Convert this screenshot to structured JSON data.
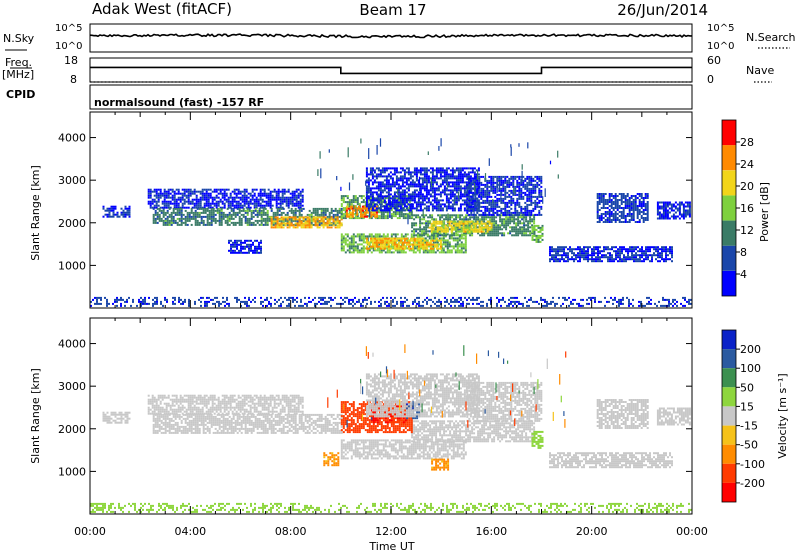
{
  "header": {
    "title_left": "Adak West (fitACF)",
    "title_center": "Beam 17",
    "title_right": "26/Jun/2014"
  },
  "chart_data": [
    {
      "type": "line",
      "panel": "noise",
      "left_label": "N.Sky",
      "right_label": "N.Search",
      "left_ticks": [
        "10^5",
        "10^0"
      ],
      "right_ticks": [
        "10^5",
        "10^0"
      ],
      "series": [
        {
          "name": "N.Sky",
          "style": "solid",
          "x": [
            0,
            6,
            12,
            18,
            24
          ],
          "y_fraction": [
            0.42,
            0.4,
            0.45,
            0.4,
            0.42
          ]
        }
      ]
    },
    {
      "type": "line",
      "panel": "frequency",
      "left_label": "Freq.",
      "left_unit": "[MHz]",
      "left_ticks": [
        18,
        8
      ],
      "ylim_left": [
        8,
        18
      ],
      "right_label": "Nave",
      "right_ticks": [
        60,
        0
      ],
      "ylim_right": [
        0,
        60
      ],
      "series": [
        {
          "name": "Freq.",
          "style": "solid",
          "x": [
            0,
            10,
            10,
            18,
            18,
            24
          ],
          "y": [
            14.1,
            14.1,
            11.6,
            11.6,
            14.1,
            14.1
          ]
        },
        {
          "name": "Nave",
          "style": "dotted",
          "x": [
            0,
            24
          ],
          "y": [
            8,
            8
          ]
        }
      ]
    },
    {
      "type": "text",
      "panel": "cpid",
      "left_label": "CPID",
      "program": "normalsound (fast) -157 RF"
    },
    {
      "type": "heatmap",
      "panel": "power",
      "ylabel": "Slant Range [km]",
      "yticks": [
        1000,
        2000,
        3000,
        4000
      ],
      "ylim": [
        0,
        4600
      ],
      "colorbar_label": "Power [dB]",
      "colorbar_ticks": [
        4,
        8,
        12,
        16,
        20,
        24,
        28
      ],
      "colorbar_range": [
        0,
        32
      ],
      "colors": [
        "#0000ff",
        "#1a46aa",
        "#3a7b66",
        "#7ed03e",
        "#f2d51a",
        "#ff8a00",
        "#ff0000"
      ],
      "regions": [
        {
          "t": [
            0.5,
            1.6
          ],
          "r": [
            2150,
            2400
          ],
          "value": 5
        },
        {
          "t": [
            2.3,
            8.5
          ],
          "r": [
            2350,
            2800
          ],
          "value": 4
        },
        {
          "t": [
            2.5,
            10.0
          ],
          "r": [
            1950,
            2350
          ],
          "value": 11
        },
        {
          "t": [
            7.2,
            10.0
          ],
          "r": [
            1900,
            2150
          ],
          "value": 23
        },
        {
          "t": [
            10.0,
            12.8
          ],
          "r": [
            2100,
            2650
          ],
          "value": 14
        },
        {
          "t": [
            10.2,
            11.4
          ],
          "r": [
            2150,
            2400
          ],
          "value": 25
        },
        {
          "t": [
            10.0,
            15.0
          ],
          "r": [
            1300,
            1750
          ],
          "value": 15
        },
        {
          "t": [
            11.0,
            14.0
          ],
          "r": [
            1400,
            1650
          ],
          "value": 22
        },
        {
          "t": [
            12.8,
            17.7
          ],
          "r": [
            1700,
            2200
          ],
          "value": 12
        },
        {
          "t": [
            13.5,
            16.0
          ],
          "r": [
            1800,
            2050
          ],
          "value": 20
        },
        {
          "t": [
            17.6,
            18.0
          ],
          "r": [
            1550,
            1950
          ],
          "value": 15
        },
        {
          "t": [
            11.0,
            15.5
          ],
          "r": [
            2300,
            3300
          ],
          "value": 4
        },
        {
          "t": [
            15.0,
            18.0
          ],
          "r": [
            2200,
            3100
          ],
          "value": 5
        },
        {
          "t": [
            18.3,
            23.2
          ],
          "r": [
            1100,
            1450
          ],
          "value": 5
        },
        {
          "t": [
            20.2,
            22.2
          ],
          "r": [
            2000,
            2700
          ],
          "value": 6
        },
        {
          "t": [
            22.6,
            23.9
          ],
          "r": [
            2100,
            2500
          ],
          "value": 4
        },
        {
          "t": [
            5.5,
            6.8
          ],
          "r": [
            1300,
            1600
          ],
          "value": 4
        },
        {
          "t": [
            0.0,
            24.0
          ],
          "r": [
            60,
            260
          ],
          "value": 6
        }
      ]
    },
    {
      "type": "heatmap",
      "panel": "velocity",
      "ylabel": "Slant Range [km]",
      "yticks": [
        1000,
        2000,
        3000,
        4000
      ],
      "ylim": [
        0,
        4600
      ],
      "xlabel": "Time UT",
      "xticks": [
        "00:00",
        "04:00",
        "08:00",
        "12:00",
        "16:00",
        "20:00",
        "00:00"
      ],
      "xlim": [
        0,
        24
      ],
      "colorbar_label": "Velocity [m s⁻¹]",
      "colorbar_ticks": [
        200,
        100,
        50,
        15,
        -15,
        -50,
        -100,
        -200
      ],
      "colorbar_range": [
        -250,
        250
      ],
      "colors": [
        "#0a22c8",
        "#2b5aa0",
        "#3c9050",
        "#8ed63e",
        "#c8c8c8",
        "#f6c21a",
        "#ff8c00",
        "#ff3b00",
        "#ff0000"
      ],
      "regions": [
        {
          "t": [
            0.5,
            1.6
          ],
          "r": [
            2150,
            2400
          ],
          "value": 0
        },
        {
          "t": [
            2.3,
            8.5
          ],
          "r": [
            2350,
            2800
          ],
          "value": 0
        },
        {
          "t": [
            2.5,
            10.0
          ],
          "r": [
            1900,
            2350
          ],
          "value": 0
        },
        {
          "t": [
            10.0,
            15.0
          ],
          "r": [
            1300,
            1750
          ],
          "value": 0
        },
        {
          "t": [
            12.8,
            17.7
          ],
          "r": [
            1700,
            2200
          ],
          "value": 0
        },
        {
          "t": [
            17.6,
            18.0
          ],
          "r": [
            1550,
            1950
          ],
          "value": 30
        },
        {
          "t": [
            10.0,
            12.8
          ],
          "r": [
            1900,
            2650
          ],
          "value": -130
        },
        {
          "t": [
            11.2,
            12.6
          ],
          "r": [
            2150,
            2550
          ],
          "value": -200
        },
        {
          "t": [
            12.6,
            13.1
          ],
          "r": [
            2250,
            2600
          ],
          "value": 180
        },
        {
          "t": [
            9.3,
            9.9
          ],
          "r": [
            1150,
            1450
          ],
          "value": -70
        },
        {
          "t": [
            13.6,
            14.3
          ],
          "r": [
            1050,
            1300
          ],
          "value": -70
        },
        {
          "t": [
            11.0,
            15.5
          ],
          "r": [
            2300,
            3300
          ],
          "value": 0
        },
        {
          "t": [
            15.0,
            18.0
          ],
          "r": [
            2200,
            3100
          ],
          "value": 0
        },
        {
          "t": [
            18.3,
            23.2
          ],
          "r": [
            1100,
            1450
          ],
          "value": 0
        },
        {
          "t": [
            20.2,
            22.2
          ],
          "r": [
            2000,
            2700
          ],
          "value": 0
        },
        {
          "t": [
            22.6,
            23.9
          ],
          "r": [
            2100,
            2500
          ],
          "value": 0
        },
        {
          "t": [
            0.0,
            24.0
          ],
          "r": [
            60,
            260
          ],
          "value": 30
        }
      ]
    }
  ]
}
